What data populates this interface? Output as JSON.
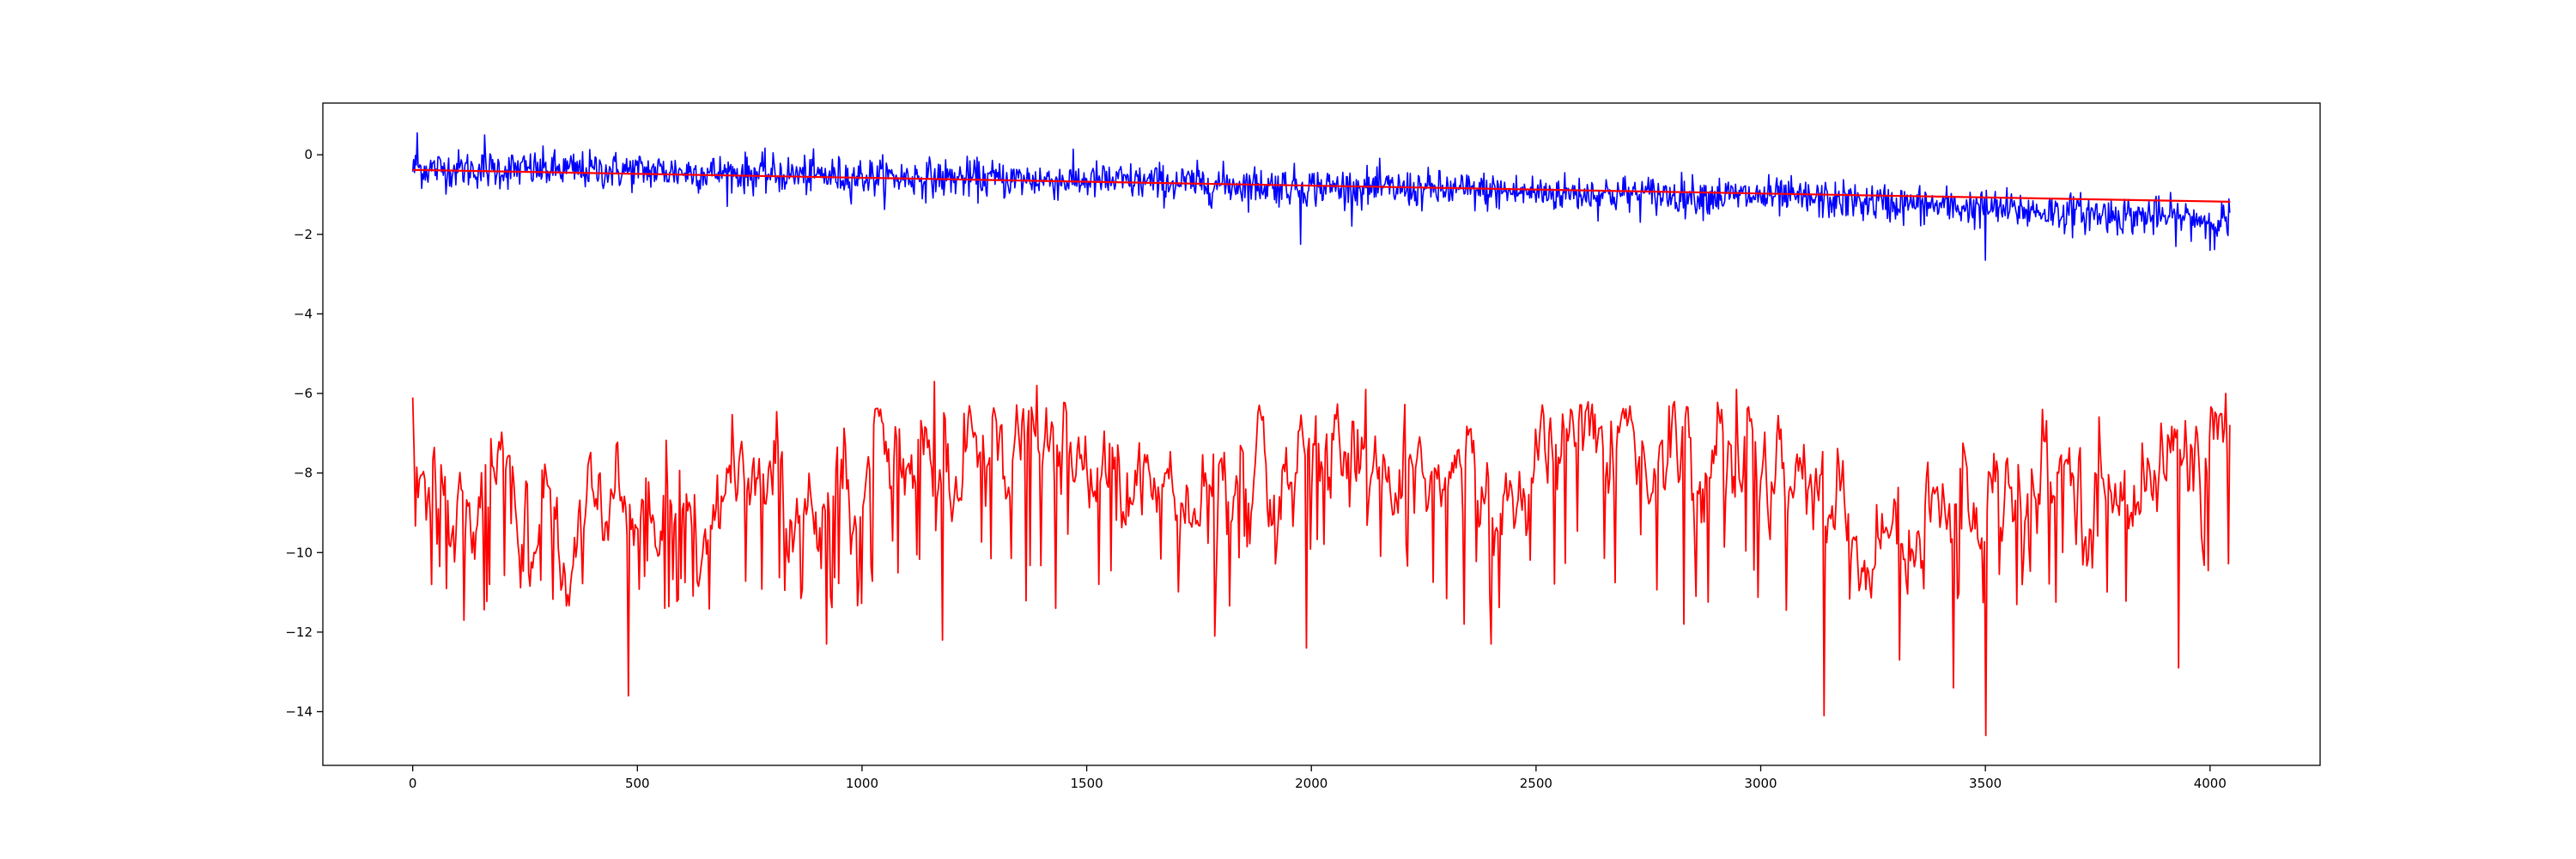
{
  "chart_data": {
    "type": "line",
    "title": "",
    "xlabel": "",
    "ylabel": "",
    "xlim": [
      -200,
      4245
    ],
    "ylim": [
      -15.35,
      1.3
    ],
    "x_ticks": [
      0,
      500,
      1000,
      1500,
      2000,
      2500,
      3000,
      3500,
      4000
    ],
    "x_tick_labels": [
      "0",
      "500",
      "1000",
      "1500",
      "2000",
      "2500",
      "3000",
      "3500",
      "4000"
    ],
    "y_ticks": [
      0,
      -2,
      -4,
      -6,
      -8,
      -10,
      -12,
      -14
    ],
    "y_tick_labels": [
      "0",
      "−2",
      "−4",
      "−6",
      "−8",
      "−10",
      "−12",
      "−14"
    ],
    "grid": false,
    "legend": "none",
    "series": [
      {
        "color": "#0000ff",
        "style": "noisy line, stepped trend",
        "x_range": [
          0,
          4045
        ],
        "trend": [
          [
            0,
            -0.35
          ],
          [
            500,
            -0.4
          ],
          [
            1000,
            -0.55
          ],
          [
            1500,
            -0.65
          ],
          [
            2000,
            -0.8
          ],
          [
            2500,
            -0.95
          ],
          [
            3000,
            -1.05
          ],
          [
            3500,
            -1.35
          ],
          [
            4045,
            -1.65
          ]
        ],
        "noise_amplitude": 0.3,
        "extremes": [
          [
            10,
            0.55
          ],
          [
            160,
            0.5
          ],
          [
            1975,
            -2.25
          ],
          [
            3500,
            -2.65
          ],
          [
            4000,
            -2.4
          ]
        ]
      },
      {
        "color": "#ff0000",
        "style": "smooth trend line",
        "x": [
          0,
          4045
        ],
        "y": [
          -0.38,
          -1.18
        ]
      },
      {
        "color": "#ff0000",
        "style": "spiky line",
        "x_range": [
          0,
          4045
        ],
        "baseline": -6.5,
        "segments_envelope": [
          [
            0,
            -8.5
          ],
          [
            150,
            -8.6
          ],
          [
            400,
            -9.2
          ],
          [
            700,
            -8.8
          ],
          [
            800,
            -8.3
          ],
          [
            1000,
            -7.8
          ],
          [
            1100,
            -8.0
          ],
          [
            1200,
            -7.2
          ],
          [
            1350,
            -7.3
          ],
          [
            1500,
            -7.5
          ],
          [
            1700,
            -9.2
          ],
          [
            1900,
            -9.0
          ],
          [
            2100,
            -7.5
          ],
          [
            2300,
            -8.5
          ],
          [
            2450,
            -8.2
          ],
          [
            2600,
            -7.0
          ],
          [
            2800,
            -7.6
          ],
          [
            3000,
            -7.4
          ],
          [
            3200,
            -9.6
          ],
          [
            3400,
            -9.4
          ],
          [
            3600,
            -8.0
          ],
          [
            3800,
            -8.5
          ],
          [
            4045,
            -6.6
          ]
        ],
        "min_points": [
          [
            115,
            -11.7
          ],
          [
            480,
            -13.6
          ],
          [
            560,
            -11.4
          ],
          [
            920,
            -12.3
          ],
          [
            1180,
            -12.2
          ],
          [
            1430,
            -11.4
          ],
          [
            1785,
            -12.1
          ],
          [
            1990,
            -12.4
          ],
          [
            2340,
            -11.8
          ],
          [
            2400,
            -12.3
          ],
          [
            2830,
            -11.8
          ],
          [
            3140,
            -14.1
          ],
          [
            3310,
            -12.7
          ],
          [
            3430,
            -13.4
          ],
          [
            3500,
            -14.6
          ],
          [
            3930,
            -12.9
          ]
        ],
        "max_points": [
          [
            0,
            -6.1
          ],
          [
            1160,
            -5.7
          ],
          [
            1390,
            -5.8
          ],
          [
            2120,
            -5.9
          ],
          [
            2945,
            -5.9
          ],
          [
            4035,
            -6.0
          ]
        ]
      }
    ]
  }
}
